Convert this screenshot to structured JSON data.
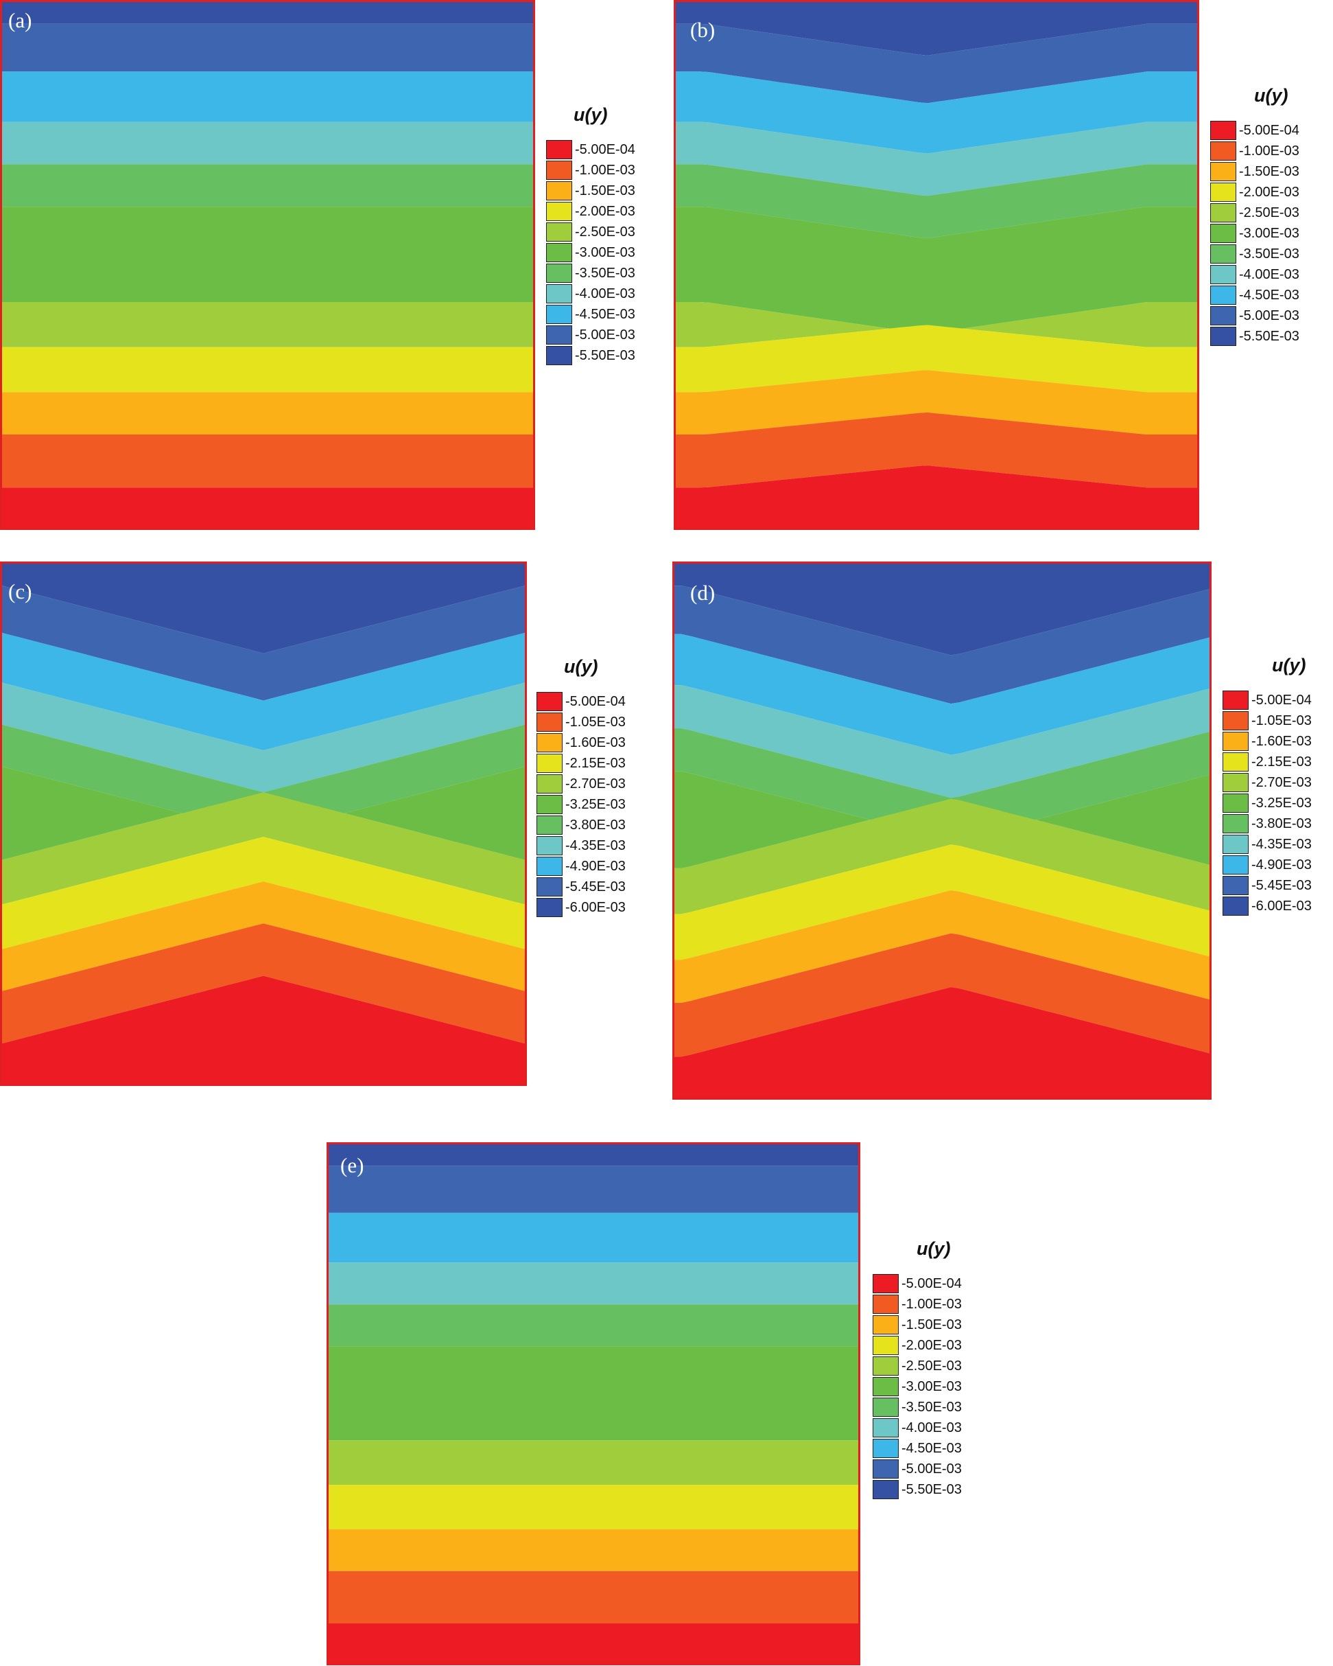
{
  "chart_data": [
    {
      "type": "heatmap",
      "panel_label": "(a)",
      "legend_title": "u(y)",
      "legend_levels": [
        "-5.00E-04",
        "-1.00E-03",
        "-1.50E-03",
        "-2.00E-03",
        "-2.50E-03",
        "-3.00E-03",
        "-3.50E-03",
        "-4.00E-03",
        "-4.50E-03",
        "-5.00E-03",
        "-5.50E-03"
      ],
      "pattern": "flat-bands"
    },
    {
      "type": "heatmap",
      "panel_label": "(b)",
      "legend_title": "u(y)",
      "legend_levels": [
        "-5.00E-04",
        "-1.00E-03",
        "-1.50E-03",
        "-2.00E-03",
        "-2.50E-03",
        "-3.00E-03",
        "-3.50E-03",
        "-4.00E-03",
        "-4.50E-03",
        "-5.00E-03",
        "-5.50E-03"
      ],
      "pattern": "mild-v"
    },
    {
      "type": "heatmap",
      "panel_label": "(c)",
      "legend_title": "u(y)",
      "legend_levels": [
        "-5.00E-04",
        "-1.05E-03",
        "-1.60E-03",
        "-2.15E-03",
        "-2.70E-03",
        "-3.25E-03",
        "-3.80E-03",
        "-4.35E-03",
        "-4.90E-03",
        "-5.45E-03",
        "-6.00E-03"
      ],
      "pattern": "strong-v"
    },
    {
      "type": "heatmap",
      "panel_label": "(d)",
      "legend_title": "u(y)",
      "legend_levels": [
        "-5.00E-04",
        "-1.05E-03",
        "-1.60E-03",
        "-2.15E-03",
        "-2.70E-03",
        "-3.25E-03",
        "-3.80E-03",
        "-4.35E-03",
        "-4.90E-03",
        "-5.45E-03",
        "-6.00E-03"
      ],
      "pattern": "strong-v-offset"
    },
    {
      "type": "heatmap",
      "panel_label": "(e)",
      "legend_title": "u(y)",
      "legend_levels": [
        "-5.00E-04",
        "-1.00E-03",
        "-1.50E-03",
        "-2.00E-03",
        "-2.50E-03",
        "-3.00E-03",
        "-3.50E-03",
        "-4.00E-03",
        "-4.50E-03",
        "-5.00E-03",
        "-5.50E-03"
      ],
      "pattern": "flat-bands"
    }
  ],
  "colors": {
    "level_colors": [
      "#ed1c24",
      "#f15a22",
      "#fbb017",
      "#e5e41c",
      "#9fcd3b",
      "#6cbd45",
      "#66bf61",
      "#6cc7c6",
      "#3db6e8",
      "#3e66b0",
      "#3451a3"
    ],
    "frame": "#e02020"
  }
}
